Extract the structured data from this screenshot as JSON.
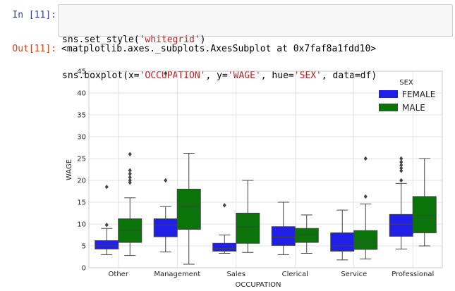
{
  "cell": {
    "in_prompt": "In [11]:",
    "out_prompt": "Out[11]:",
    "code_line1": {
      "pre": "sns.set_style(",
      "str": "'whitegrid'",
      "post": ")"
    },
    "code_line2": {
      "p1": "sns.boxplot(x=",
      "s1": "'OCCUPATION'",
      "p2": ", y=",
      "s2": "'WAGE'",
      "p3": ", hue=",
      "s3": "'SEX'",
      "p4": ", data=df)"
    },
    "output": "<matplotlib.axes._subplots.AxesSubplot at 0x7faf8a1fdd10>"
  },
  "colors": {
    "female": "#1f1fe8",
    "male": "#0a730a",
    "grid": "#e3e3e3",
    "axis": "#cccccc"
  },
  "chart_data": {
    "type": "boxplot",
    "xlabel": "OCCUPATION",
    "ylabel": "WAGE",
    "ylim": [
      0,
      45
    ],
    "yticks": [
      "0",
      "5",
      "10",
      "15",
      "20",
      "25",
      "30",
      "35",
      "40",
      "45"
    ],
    "grid": true,
    "legend": {
      "title": "SEX",
      "placement": "top-right",
      "entries": [
        "FEMALE",
        "MALE"
      ]
    },
    "categories": [
      "Other",
      "Management",
      "Sales",
      "Clerical",
      "Service",
      "Professional"
    ],
    "series": [
      {
        "name": "FEMALE",
        "boxes": [
          {
            "q1": 4.3,
            "median": 5.0,
            "q3": 6.2,
            "whislo": 3.0,
            "whishi": 9.0,
            "fliers": [
              9.8,
              18.5
            ]
          },
          {
            "q1": 7.1,
            "median": 9.8,
            "q3": 11.2,
            "whislo": 3.6,
            "whishi": 14.0,
            "fliers": [
              20.0,
              44.5
            ]
          },
          {
            "q1": 3.8,
            "median": 4.4,
            "q3": 5.6,
            "whislo": 3.3,
            "whishi": 7.5,
            "fliers": [
              14.3
            ]
          },
          {
            "q1": 5.1,
            "median": 7.0,
            "q3": 9.4,
            "whislo": 3.0,
            "whishi": 15.0,
            "fliers": []
          },
          {
            "q1": 3.8,
            "median": 5.0,
            "q3": 8.0,
            "whislo": 1.8,
            "whishi": 13.2,
            "fliers": []
          },
          {
            "q1": 7.2,
            "median": 10.0,
            "q3": 12.2,
            "whislo": 4.3,
            "whishi": 19.3,
            "fliers": [
              20.0,
              22.2,
              22.8,
              23.5,
              24.2,
              25.0
            ]
          }
        ]
      },
      {
        "name": "MALE",
        "boxes": [
          {
            "q1": 5.8,
            "median": 8.5,
            "q3": 11.2,
            "whislo": 2.8,
            "whishi": 16.0,
            "fliers": [
              19.5,
              20.0,
              20.7,
              21.5,
              22.3,
              26.0
            ]
          },
          {
            "q1": 8.8,
            "median": 14.0,
            "q3": 18.0,
            "whislo": 0.8,
            "whishi": 26.2,
            "fliers": []
          },
          {
            "q1": 5.6,
            "median": 9.4,
            "q3": 12.5,
            "whislo": 3.5,
            "whishi": 20.0,
            "fliers": []
          },
          {
            "q1": 5.8,
            "median": 7.6,
            "q3": 9.0,
            "whislo": 3.3,
            "whishi": 12.1,
            "fliers": []
          },
          {
            "q1": 4.2,
            "median": 5.8,
            "q3": 8.5,
            "whislo": 2.0,
            "whishi": 14.6,
            "fliers": [
              16.3,
              25.0
            ]
          },
          {
            "q1": 8.0,
            "median": 12.0,
            "q3": 16.3,
            "whislo": 5.0,
            "whishi": 25.0,
            "fliers": []
          }
        ]
      }
    ]
  }
}
